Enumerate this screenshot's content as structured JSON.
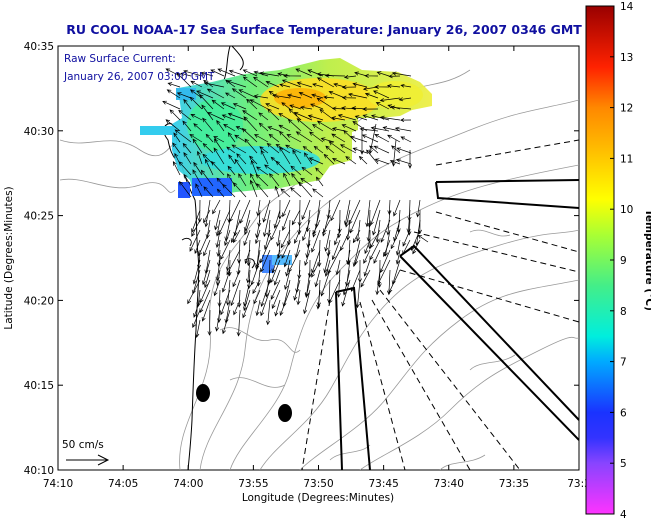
{
  "title": "RU COOL  NOAA-17  Sea Surface Temperature:  January 26, 2007 0346 GMT",
  "annotation": {
    "line1": "Raw Surface Current:",
    "line2": "January 26, 2007 03:00 GMT"
  },
  "scale_label": "50 cm/s",
  "colors": {
    "title": "#1010a0",
    "coast": "#000000",
    "bathymetry": "#999999"
  },
  "chart_data": {
    "type": "map",
    "xlabel": "Longitude (Degrees:Minutes)",
    "ylabel": "Latitude (Degrees:Minutes)",
    "x_ticks": [
      "74:10",
      "74:05",
      "74:00",
      "73:55",
      "73:50",
      "73:45",
      "73:40",
      "73:35",
      "73:3"
    ],
    "y_ticks": [
      "40:35",
      "40:30",
      "40:25",
      "40:20",
      "40:15",
      "40:10"
    ],
    "xlim": [
      -74.1667,
      -73.5
    ],
    "ylim": [
      40.1667,
      40.5833
    ],
    "colorbar": {
      "label": "Temperature (°C)",
      "min": 4,
      "max": 14,
      "ticks": [
        "14",
        "13",
        "12",
        "11",
        "10",
        "9",
        "8",
        "7",
        "6",
        "5",
        "4"
      ]
    }
  }
}
